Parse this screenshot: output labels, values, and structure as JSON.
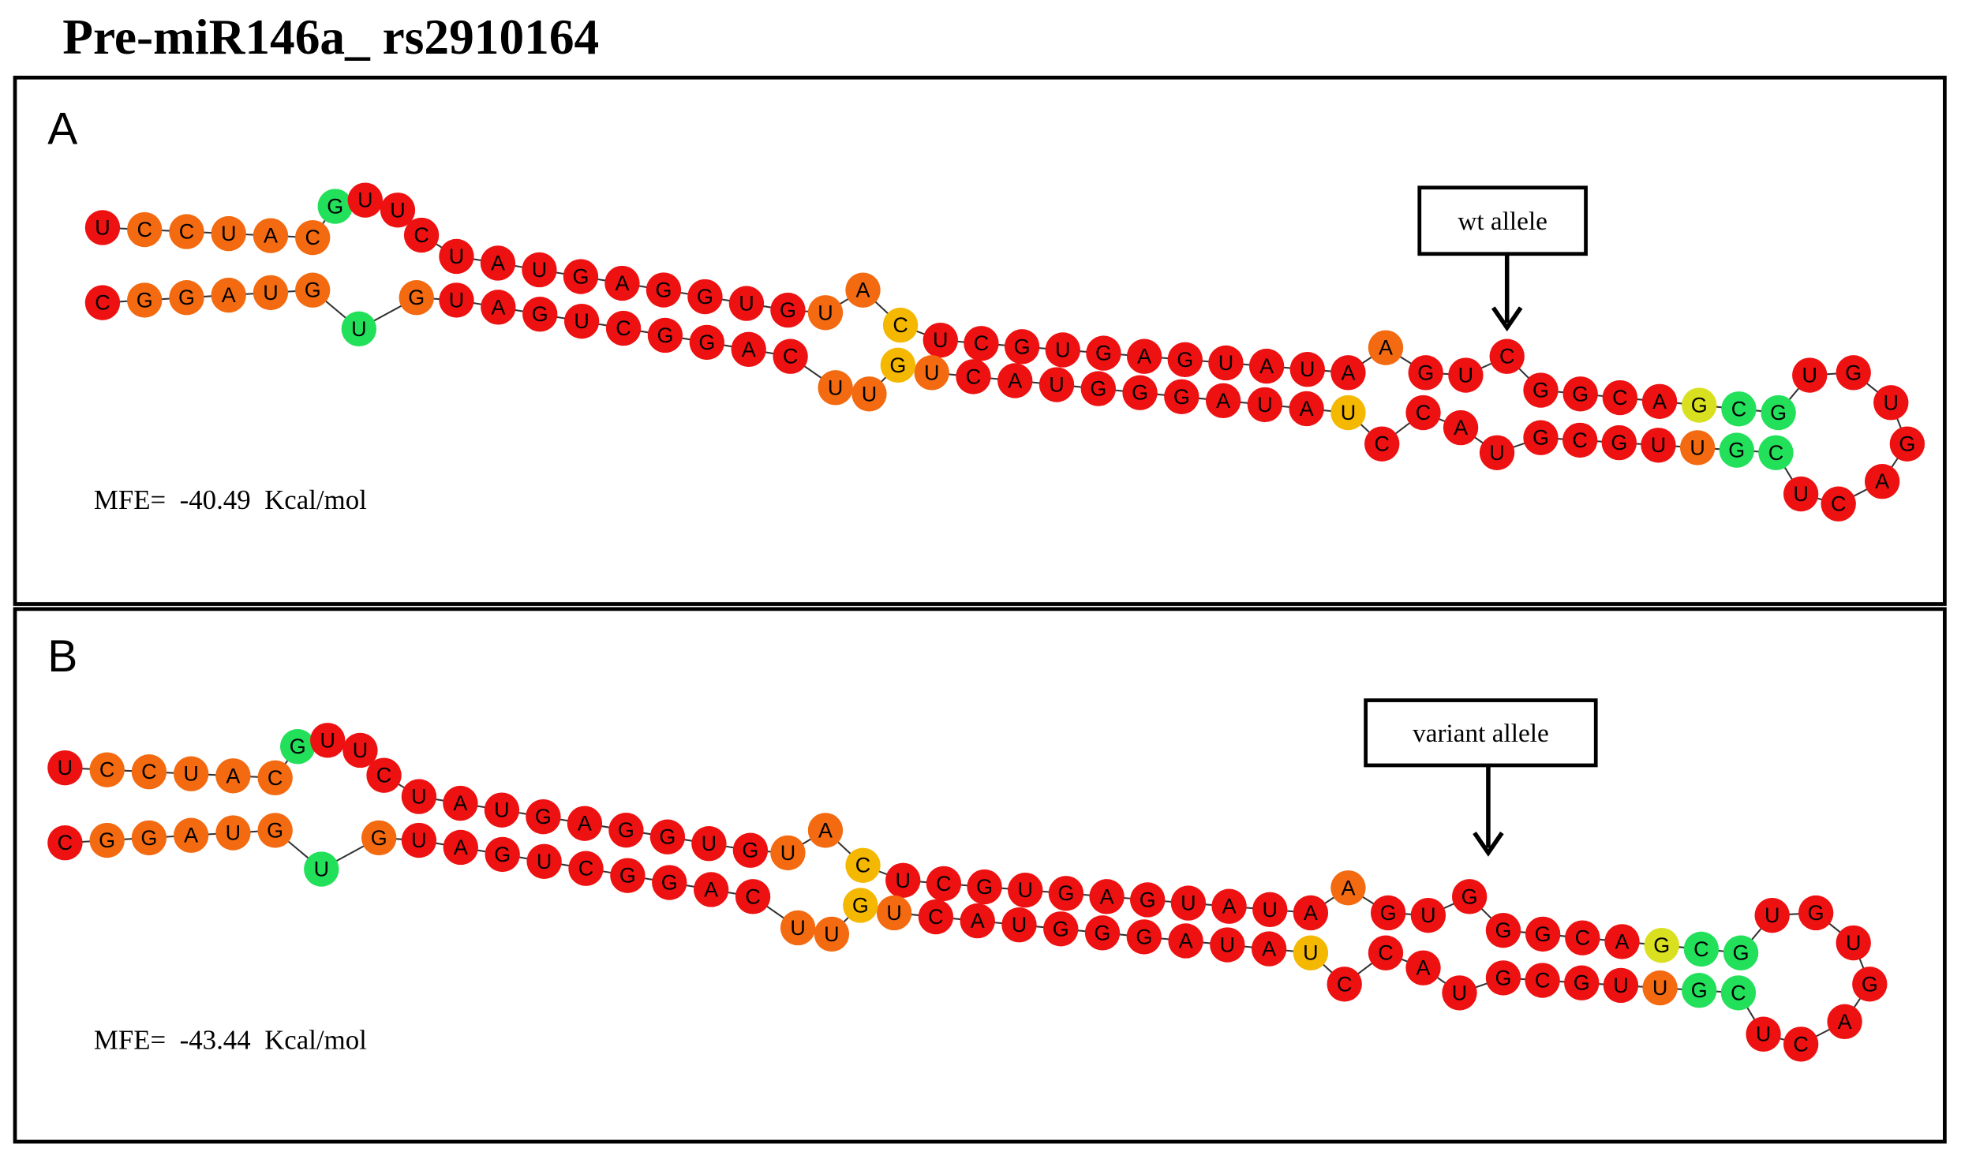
{
  "title": "Pre-miR146a_ rs2910164",
  "panels": [
    {
      "label": "A",
      "allele_label": "wt allele",
      "mfe": "MFE=  -40.49  Kcal/mol",
      "sequence": "UCCUACGUUCUAUGAGGUGUACUCGUGAGUAUAAGUCGGCAGCGUGUGACUCGUUGCGUACCUAUAGGGUACUGUUCAGGCUGAUGUGUAGGC"
    },
    {
      "label": "B",
      "allele_label": "variant allele",
      "mfe": "MFE=  -43.44  Kcal/mol",
      "sequence": "UCCUACGUUCUAUGAGGUGUACUCGUGAGUAUAAGUGGGCAGCGUGUGACUCGUUGCGUACCUAUAGGGUACUGUUCAGGCUGAUGUGUAGGC"
    }
  ]
}
